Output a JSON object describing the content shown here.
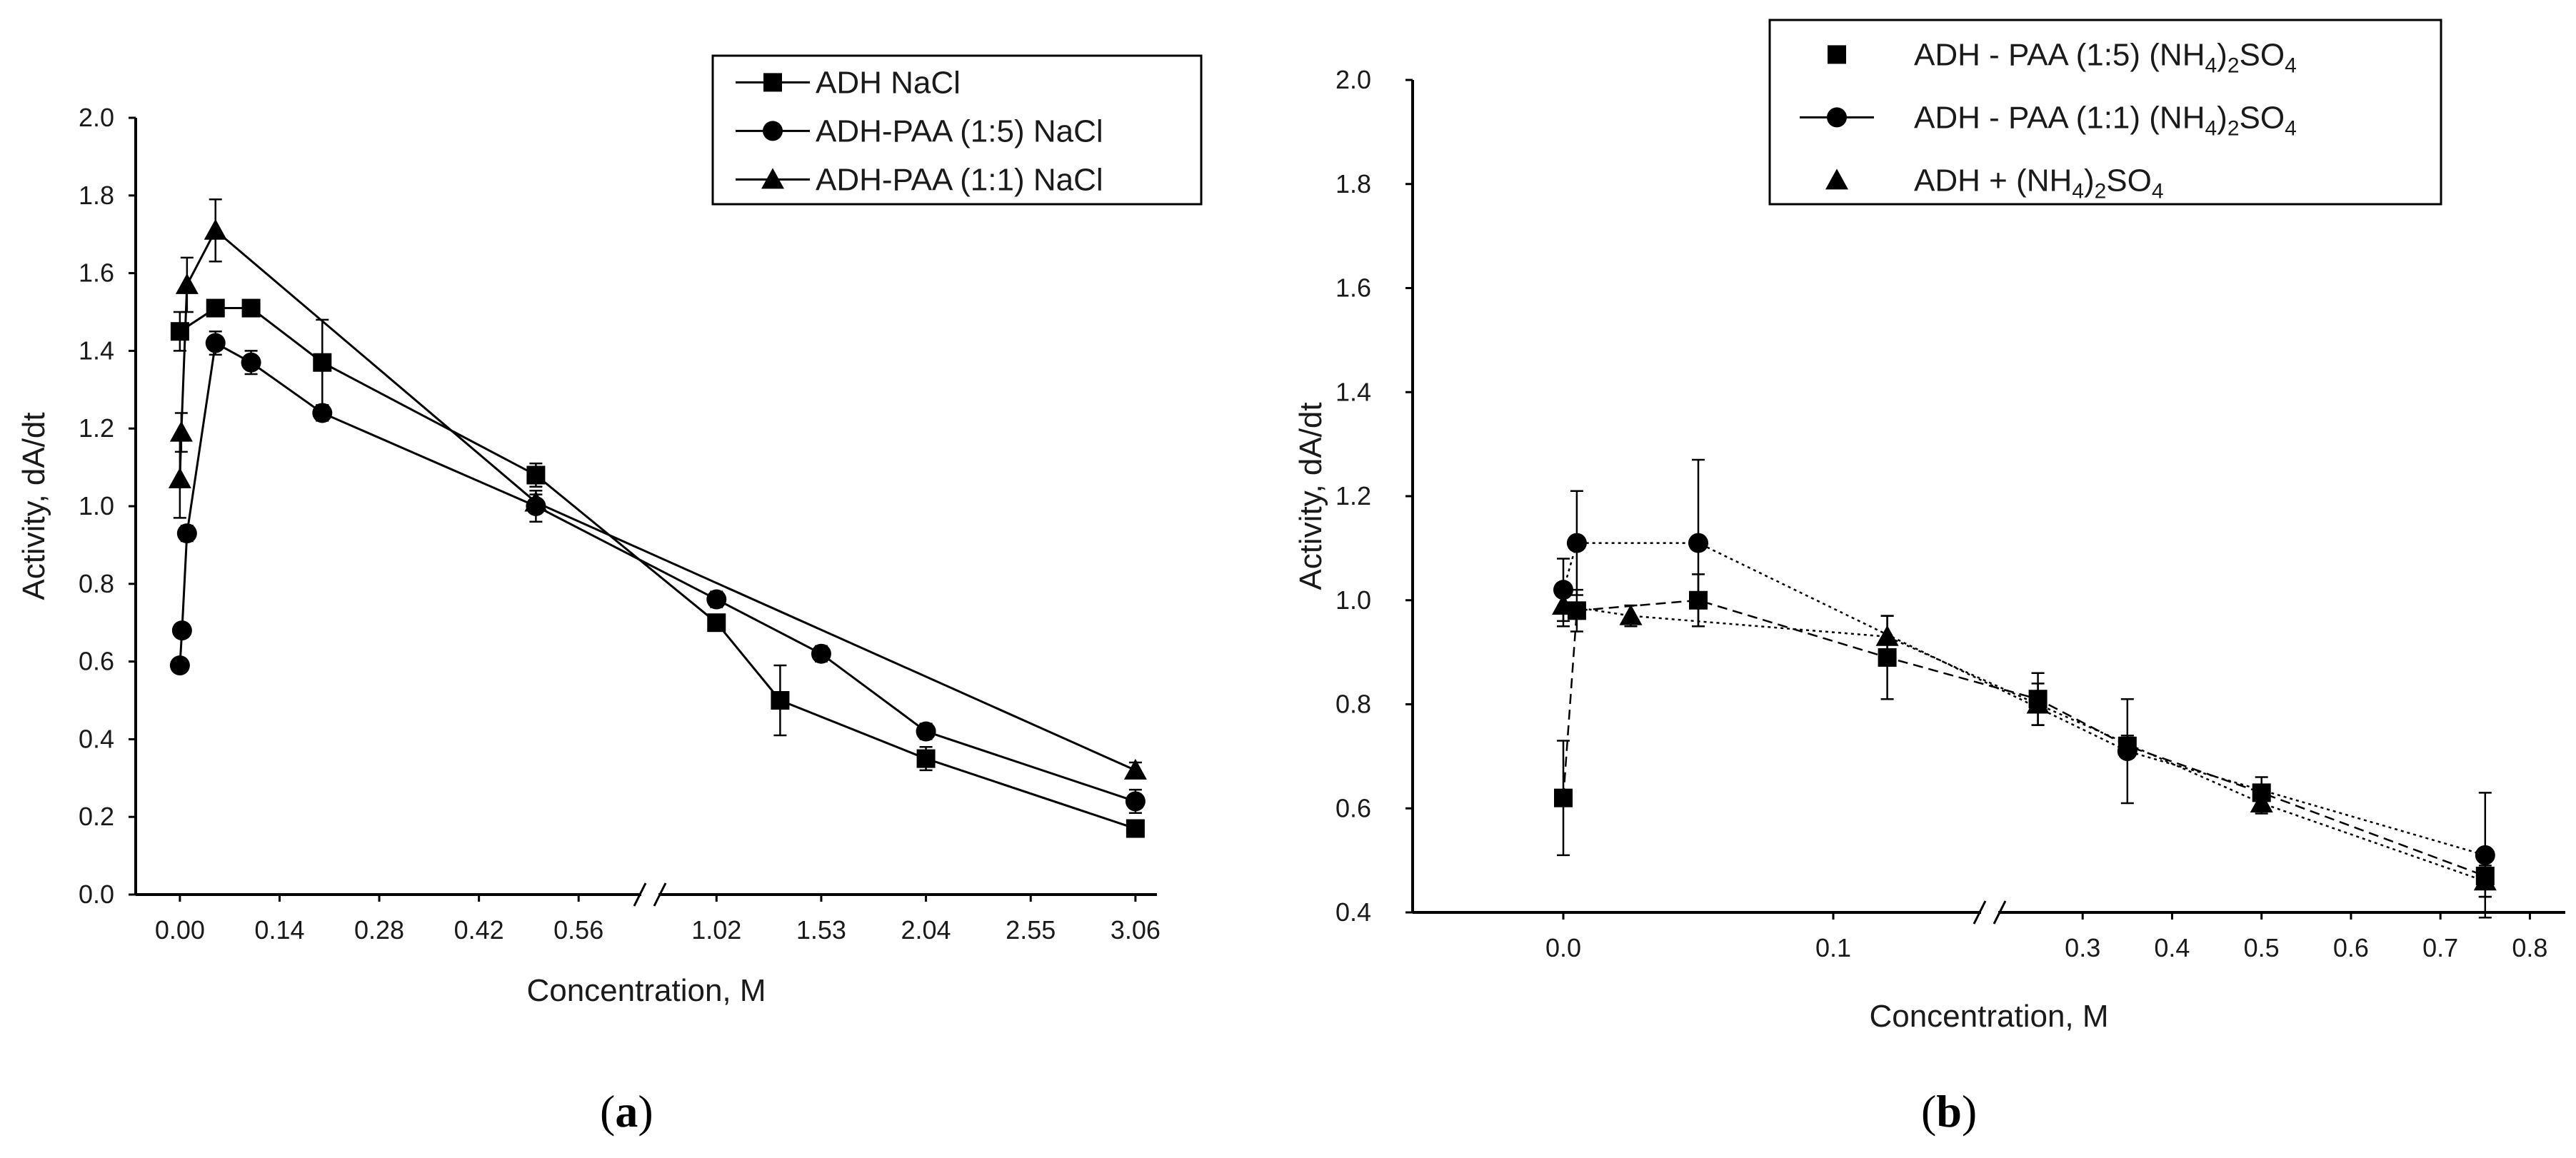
{
  "chart_data": [
    {
      "id": "a",
      "type": "line",
      "panel_label": {
        "open": "(",
        "letter": "a",
        "close": ")"
      },
      "xlabel": "Concentration, M",
      "ylabel": "Activity, dA/dt",
      "ylim": [
        0,
        2.0
      ],
      "yticks": [
        "0.0",
        "0.2",
        "0.4",
        "0.6",
        "0.8",
        "1.0",
        "1.2",
        "1.4",
        "1.6",
        "1.8",
        "2.0"
      ],
      "xticks_left": [
        "0.00",
        "0.14",
        "0.28",
        "0.42",
        "0.56"
      ],
      "xticks_right": [
        "1.02",
        "1.53",
        "2.04",
        "2.55",
        "3.06"
      ],
      "x_break": "//",
      "left_range": [
        -0.04,
        0.63
      ],
      "right_range": [
        0.8,
        3.13
      ],
      "series": [
        {
          "name": "ADH NaCl",
          "marker": "square",
          "line": "solid",
          "x": [
            0.0,
            0.05,
            0.1,
            0.2,
            0.5,
            1.02,
            1.33,
            2.04,
            3.06
          ],
          "y": [
            1.45,
            1.51,
            1.51,
            1.37,
            1.08,
            0.7,
            0.5,
            0.35,
            0.17
          ],
          "err": [
            0.05,
            0.02,
            0.02,
            0.11,
            0.03,
            0.02,
            0.09,
            0.03,
            0.01
          ]
        },
        {
          "name": "ADH-PAA (1:5)  NaCl",
          "marker": "circle",
          "line": "solid",
          "x": [
            0.0,
            0.003,
            0.01,
            0.05,
            0.1,
            0.2,
            0.5,
            1.02,
            1.53,
            2.04,
            3.06
          ],
          "y": [
            0.59,
            0.68,
            0.93,
            1.42,
            1.37,
            1.24,
            1.0,
            0.76,
            0.62,
            0.42,
            0.24
          ],
          "err": [
            0.01,
            0.01,
            0.02,
            0.03,
            0.03,
            0.02,
            0.04,
            0.02,
            0.02,
            0.02,
            0.03
          ]
        },
        {
          "name": "ADH-PAA (1:1)  NaCl",
          "marker": "triangle",
          "line": "solid",
          "x": [
            0.0,
            0.002,
            0.01,
            0.05,
            0.5,
            3.06
          ],
          "y": [
            1.07,
            1.19,
            1.57,
            1.71,
            1.01,
            0.32
          ],
          "err": [
            0.1,
            0.05,
            0.07,
            0.08,
            0.02,
            0.02
          ]
        }
      ],
      "legend": {
        "placement": "top-right"
      }
    },
    {
      "id": "b",
      "type": "line",
      "panel_label": {
        "open": "(",
        "letter": "b",
        "close": ")"
      },
      "xlabel": "Concentration, M",
      "ylabel": "Activity, dA/dt",
      "ylim": [
        0.4,
        2.0
      ],
      "yticks": [
        "0.4",
        "0.6",
        "0.8",
        "1.0",
        "1.2",
        "1.4",
        "1.6",
        "1.8",
        "2.0"
      ],
      "xticks_left": [
        "0.0",
        "0.1"
      ],
      "xticks_right": [
        "0.3",
        "0.4",
        "0.5",
        "0.6",
        "0.7",
        "0.8"
      ],
      "x_break": "//",
      "left_range": [
        -0.05,
        0.15
      ],
      "right_range": [
        0.22,
        0.83
      ],
      "series": [
        {
          "name_prefix": "ADH - PAA (1:5) (NH",
          "name_sub": "4",
          "name_mid": ")",
          "name_sub2": "2",
          "name_suffix": "SO",
          "name_sub3": "4",
          "marker": "square",
          "line": "dashed",
          "x": [
            0.0,
            0.005,
            0.05,
            0.12,
            0.25,
            0.35,
            0.5,
            0.75
          ],
          "y": [
            0.62,
            0.98,
            1.0,
            0.89,
            0.81,
            0.72,
            0.63,
            0.47
          ],
          "err": [
            0.11,
            0.04,
            0.05,
            0.08,
            0.05,
            0.02,
            0.03,
            0.04
          ]
        },
        {
          "name_prefix": "ADH - PAA (1:1) (NH",
          "name_sub": "4",
          "name_mid": ")",
          "name_sub2": "2",
          "name_suffix": "SO",
          "name_sub3": "4",
          "marker": "circle",
          "line": "dotted",
          "x": [
            0.0,
            0.005,
            0.05,
            0.35,
            0.75
          ],
          "y": [
            1.02,
            1.11,
            1.11,
            0.71,
            0.51
          ],
          "err": [
            0.06,
            0.1,
            0.16,
            0.1,
            0.12
          ]
        },
        {
          "name_prefix": "ADH + (NH",
          "name_sub": "4",
          "name_mid": ")",
          "name_sub2": "2",
          "name_suffix": "SO",
          "name_sub3": "4",
          "marker": "triangle",
          "line": "dotted",
          "x": [
            0.0,
            0.025,
            0.12,
            0.25,
            0.5,
            0.75
          ],
          "y": [
            0.99,
            0.97,
            0.93,
            0.8,
            0.61,
            0.46
          ],
          "err": [
            0.04,
            0.02,
            0.04,
            0.04,
            0.02,
            0.03
          ]
        }
      ],
      "legend": {
        "placement": "top"
      }
    }
  ]
}
